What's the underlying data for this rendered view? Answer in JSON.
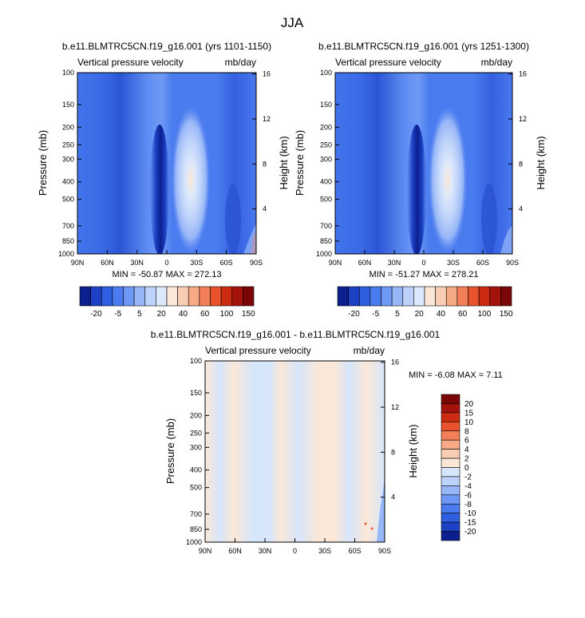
{
  "figure_title": "JJA",
  "levels_full": [
    "-20",
    "-5",
    "5",
    "20",
    "40",
    "60",
    "100",
    "150"
  ],
  "levels_diff": [
    "20",
    "15",
    "10",
    "8",
    "6",
    "4",
    "2",
    "0",
    "-2",
    "-4",
    "-6",
    "-8",
    "-10",
    "-15",
    "-20"
  ],
  "colors_full": [
    "#0b1f8f",
    "#1c41c4",
    "#2f5fe0",
    "#4a7bef",
    "#6e98f5",
    "#97b6f8",
    "#bdd2fa",
    "#dce8fb",
    "#fbe7d8",
    "#f8cdb3",
    "#f6a985",
    "#f27f58",
    "#e8532d",
    "#cc2b12",
    "#a4120c",
    "#7a0607"
  ],
  "colors_diff": [
    "#7a0607",
    "#a4120c",
    "#cc2b12",
    "#e8532d",
    "#f27f58",
    "#f6a985",
    "#f8cdb3",
    "#fbe7d8",
    "#d6e6fb",
    "#bdd2fa",
    "#97b6f8",
    "#6e98f5",
    "#4a7bef",
    "#2f5fe0",
    "#1c41c4",
    "#0b1f8f"
  ],
  "chart_data": [
    {
      "type": "heatmap",
      "title": "b.e11.BLMTRC5CN.f19_g16.001 (yrs 1101-1150)",
      "subtitle_left": "Vertical pressure velocity",
      "subtitle_right": "mb/day",
      "xlabel": "",
      "ylabel": "Pressure (mb)",
      "ylabel_right": "Height (km)",
      "x_ticks": [
        "90N",
        "60N",
        "30N",
        "0",
        "30S",
        "60S",
        "90S"
      ],
      "y_ticks": [
        "100",
        "150",
        "200",
        "250",
        "300",
        "400",
        "500",
        "700",
        "850",
        "1000"
      ],
      "y_right_ticks": [
        "16",
        "12",
        "8",
        "4"
      ],
      "stats": "MIN = -50.87  MAX = 272.13",
      "min": -50.87,
      "max": 272.13
    },
    {
      "type": "heatmap",
      "title": "b.e11.BLMTRC5CN.f19_g16.001 (yrs 1251-1300)",
      "subtitle_left": "Vertical pressure velocity",
      "subtitle_right": "mb/day",
      "xlabel": "",
      "ylabel": "Pressure (mb)",
      "ylabel_right": "Height (km)",
      "x_ticks": [
        "90N",
        "60N",
        "30N",
        "0",
        "30S",
        "60S",
        "90S"
      ],
      "y_ticks": [
        "100",
        "150",
        "200",
        "250",
        "300",
        "400",
        "500",
        "700",
        "850",
        "1000"
      ],
      "y_right_ticks": [
        "16",
        "12",
        "8",
        "4"
      ],
      "stats": "MIN = -51.27  MAX = 278.21",
      "min": -51.27,
      "max": 278.21
    },
    {
      "type": "heatmap",
      "title": "b.e11.BLMTRC5CN.f19_g16.001 - b.e11.BLMTRC5CN.f19_g16.001",
      "subtitle_left": "Vertical pressure velocity",
      "subtitle_right": "mb/day",
      "xlabel": "",
      "ylabel": "Pressure (mb)",
      "ylabel_right": "Height (km)",
      "x_ticks": [
        "90N",
        "60N",
        "30N",
        "0",
        "30S",
        "60S",
        "90S"
      ],
      "y_ticks": [
        "100",
        "150",
        "200",
        "250",
        "300",
        "400",
        "500",
        "700",
        "850",
        "1000"
      ],
      "y_right_ticks": [
        "16",
        "12",
        "8",
        "4"
      ],
      "stats": "MIN =  -6.08  MAX =  7.11",
      "min": -6.08,
      "max": 7.11
    }
  ]
}
